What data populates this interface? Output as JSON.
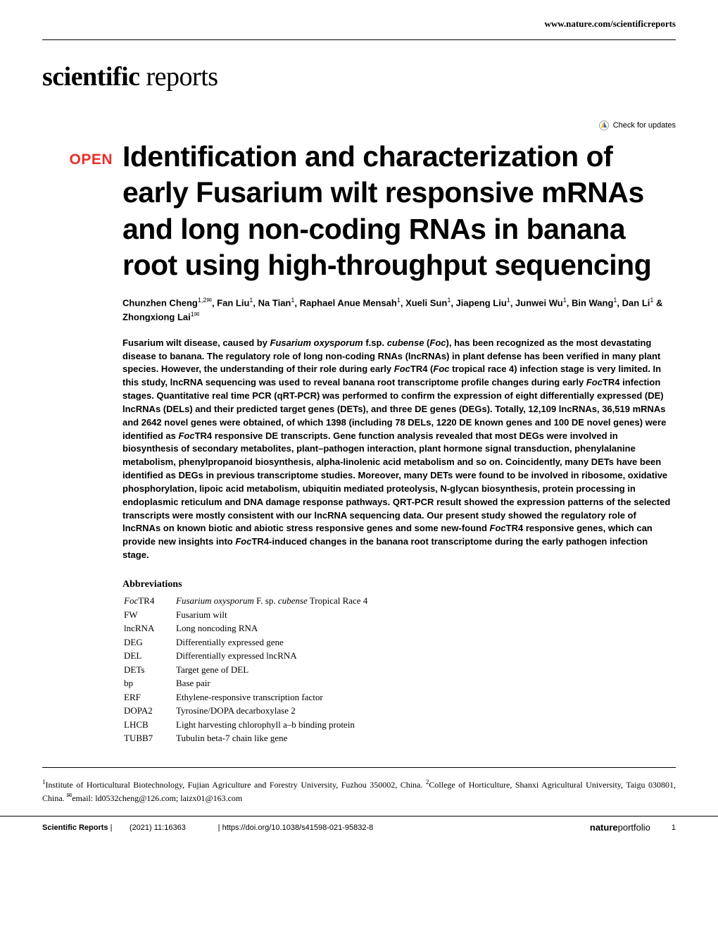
{
  "header": {
    "url": "www.nature.com/scientificreports"
  },
  "journal": {
    "name_bold": "scientific",
    "name_light": " reports"
  },
  "check_updates": {
    "label": "Check for updates"
  },
  "article": {
    "open_label": "OPEN",
    "title": "Identification and characterization of early Fusarium wilt responsive mRNAs and long non-coding RNAs in banana root using high-throughput sequencing",
    "authors_html": "Chunzhen Cheng<sup>1,2✉</sup>, Fan Liu<sup>1</sup>, Na Tian<sup>1</sup>, Raphael Anue Mensah<sup>1</sup>, Xueli Sun<sup>1</sup>, Jiapeng Liu<sup>1</sup>, Junwei Wu<sup>1</sup>, Bin Wang<sup>1</sup>, Dan Li<sup>1</sup> & Zhongxiong Lai<sup>1✉</sup>",
    "abstract_html": "Fusarium wilt disease, caused by <span class=\"italic\">Fusarium oxysporum</span> f.sp. <span class=\"italic\">cubense</span> (<span class=\"italic\">Foc</span>), has been recognized as the most devastating disease to banana. The regulatory role of long non-coding RNAs (lncRNAs) in plant defense has been verified in many plant species. However, the understanding of their role during early <span class=\"italic\">Foc</span>TR4 (<span class=\"italic\">Foc</span> tropical race 4) infection stage is very limited. In this study, lncRNA sequencing was used to reveal banana root transcriptome profile changes during early <span class=\"italic\">Foc</span>TR4 infection stages. Quantitative real time PCR (qRT-PCR) was performed to confirm the expression of eight differentially expressed (DE) lncRNAs (DELs) and their predicted target genes (DETs), and three DE genes (DEGs). Totally, 12,109 lncRNAs, 36,519 mRNAs and 2642 novel genes were obtained, of which 1398 (including 78 DELs, 1220 DE known genes and 100 DE novel genes) were identified as <span class=\"italic\">Foc</span>TR4 responsive DE transcripts. Gene function analysis revealed that most DEGs were involved in biosynthesis of secondary metabolites, plant–pathogen interaction, plant hormone signal transduction, phenylalanine metabolism, phenylpropanoid biosynthesis, alpha-linolenic acid metabolism and so on. Coincidently, many DETs have been identified as DEGs in previous transcriptome studies. Moreover, many DETs were found to be involved in ribosome, oxidative phosphorylation, lipoic acid metabolism, ubiquitin mediated proteolysis, N-glycan biosynthesis, protein processing in endoplasmic reticulum and DNA damage response pathways. QRT-PCR result showed the expression patterns of the selected transcripts were mostly consistent with our lncRNA sequencing data. Our present study showed the regulatory role of lncRNAs on known biotic and abiotic stress responsive genes and some new-found <span class=\"italic\">Foc</span>TR4 responsive genes, which can provide new insights into <span class=\"italic\">Foc</span>TR4-induced changes in the banana root transcriptome during the early pathogen infection stage."
  },
  "abbreviations": {
    "heading": "Abbreviations",
    "items": [
      {
        "abbr_html": "<span class=\"italic\">Foc</span>TR4",
        "def_html": "<span class=\"italic\">Fusarium oxysporum</span> F. sp. <span class=\"italic\">cubense</span> Tropical Race 4"
      },
      {
        "abbr_html": "FW",
        "def_html": "Fusarium wilt"
      },
      {
        "abbr_html": "lncRNA",
        "def_html": "Long noncoding RNA"
      },
      {
        "abbr_html": "DEG",
        "def_html": "Differentially expressed gene"
      },
      {
        "abbr_html": "DEL",
        "def_html": "Differentially expressed lncRNA"
      },
      {
        "abbr_html": "DETs",
        "def_html": "Target gene of DEL"
      },
      {
        "abbr_html": "bp",
        "def_html": "Base pair"
      },
      {
        "abbr_html": "ERF",
        "def_html": "Ethylene-responsive transcription factor"
      },
      {
        "abbr_html": "DOPA2",
        "def_html": "Tyrosine/DOPA decarboxylase 2"
      },
      {
        "abbr_html": "LHCB",
        "def_html": "Light harvesting chlorophyll a–b binding protein"
      },
      {
        "abbr_html": "TUBB7",
        "def_html": "Tubulin beta-7 chain like gene"
      }
    ]
  },
  "affiliations_html": "<sup>1</sup>Institute of Horticultural Biotechnology, Fujian Agriculture and Forestry University, Fuzhou 350002, China. <sup>2</sup>College of Horticulture, Shanxi Agricultural University, Taigu 030801, China. <sup>✉</sup>email: ld0532cheng@126.com; laizx01@163.com",
  "footer": {
    "journal": "Scientific Reports",
    "citation": "(2021) 11:16363",
    "doi": "https://doi.org/10.1038/s41598-021-95832-8",
    "publisher_bold": "nature",
    "publisher_light": "portfolio",
    "page_number": "1"
  },
  "colors": {
    "open_red": "#e6302a",
    "crossmark_blue": "#2a6cb3",
    "crossmark_red": "#d9232e",
    "crossmark_yellow": "#f9b418",
    "text_black": "#000000",
    "background": "#ffffff"
  },
  "typography": {
    "title_fontsize": 41,
    "body_fontsize": 13,
    "abbrev_fontsize": 13,
    "footer_fontsize": 11
  }
}
